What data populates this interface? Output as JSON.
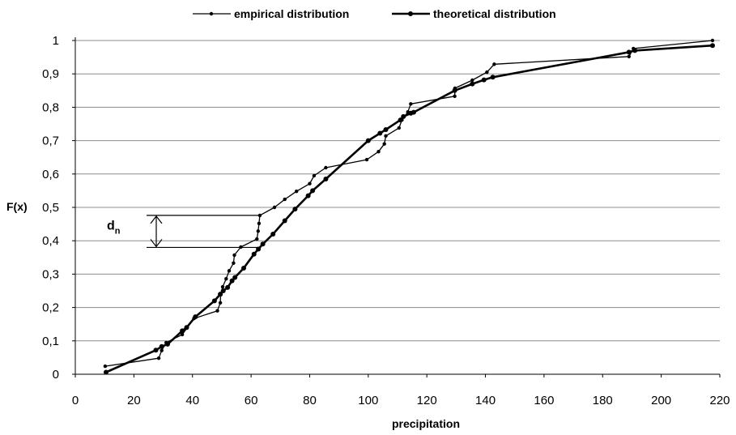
{
  "chart_data": {
    "type": "line",
    "xlabel": "precipitation",
    "ylabel": "F(x)",
    "xlim": [
      0,
      220
    ],
    "ylim": [
      0,
      1
    ],
    "x_ticks": [
      0,
      20,
      40,
      60,
      80,
      100,
      120,
      140,
      160,
      180,
      200,
      220
    ],
    "y_tick_values": [
      0,
      0.1,
      0.2,
      0.3,
      0.4,
      0.5,
      0.6,
      0.7,
      0.8,
      0.9,
      1
    ],
    "y_tick_labels": [
      "0",
      "0,1",
      "0,2",
      "0,3",
      "0,4",
      "0,5",
      "0,6",
      "0,7",
      "0,8",
      "0,9",
      "1"
    ],
    "grid": {
      "horizontal": true,
      "vertical": false
    },
    "legend_position": "top",
    "annotation": {
      "main": "d",
      "sub": "n",
      "x": 63,
      "y_low": 0.38,
      "y_high": 0.476
    },
    "series": [
      {
        "name": "empirical distribution",
        "style": "thin",
        "color": "#000000",
        "points": [
          [
            10.2,
            0.024
          ],
          [
            28.5,
            0.048
          ],
          [
            29.5,
            0.071
          ],
          [
            31.0,
            0.095
          ],
          [
            36.5,
            0.119
          ],
          [
            40.5,
            0.167
          ],
          [
            48.5,
            0.19
          ],
          [
            49.5,
            0.214
          ],
          [
            49.6,
            0.238
          ],
          [
            50.3,
            0.262
          ],
          [
            51.5,
            0.286
          ],
          [
            52.5,
            0.31
          ],
          [
            54.0,
            0.333
          ],
          [
            54.3,
            0.357
          ],
          [
            56.5,
            0.381
          ],
          [
            62.0,
            0.405
          ],
          [
            62.4,
            0.429
          ],
          [
            62.7,
            0.452
          ],
          [
            63.0,
            0.476
          ],
          [
            68.0,
            0.5
          ],
          [
            71.5,
            0.524
          ],
          [
            75.5,
            0.548
          ],
          [
            80.0,
            0.571
          ],
          [
            81.5,
            0.595
          ],
          [
            85.5,
            0.619
          ],
          [
            99.5,
            0.643
          ],
          [
            103.5,
            0.667
          ],
          [
            105.5,
            0.69
          ],
          [
            106.0,
            0.714
          ],
          [
            110.5,
            0.738
          ],
          [
            111.5,
            0.762
          ],
          [
            113.5,
            0.786
          ],
          [
            114.5,
            0.81
          ],
          [
            129.5,
            0.833
          ],
          [
            129.6,
            0.857
          ],
          [
            135.5,
            0.881
          ],
          [
            140.5,
            0.905
          ],
          [
            143.0,
            0.929
          ],
          [
            189.0,
            0.952
          ],
          [
            190.5,
            0.976
          ],
          [
            217.5,
            1.0
          ]
        ]
      },
      {
        "name": "theoretical distribution",
        "style": "thick",
        "color": "#000000",
        "points": [
          [
            10.5,
            0.006
          ],
          [
            27.5,
            0.072
          ],
          [
            29.5,
            0.083
          ],
          [
            31.5,
            0.09
          ],
          [
            36.5,
            0.13
          ],
          [
            38.0,
            0.14
          ],
          [
            41.0,
            0.172
          ],
          [
            47.5,
            0.22
          ],
          [
            49.5,
            0.24
          ],
          [
            50.5,
            0.25
          ],
          [
            52.0,
            0.26
          ],
          [
            53.5,
            0.28
          ],
          [
            54.5,
            0.29
          ],
          [
            57.5,
            0.318
          ],
          [
            61.0,
            0.36
          ],
          [
            62.5,
            0.375
          ],
          [
            64.0,
            0.39
          ],
          [
            67.5,
            0.42
          ],
          [
            71.5,
            0.46
          ],
          [
            75.0,
            0.495
          ],
          [
            79.5,
            0.535
          ],
          [
            81.0,
            0.55
          ],
          [
            85.5,
            0.585
          ],
          [
            100.0,
            0.7
          ],
          [
            104.0,
            0.722
          ],
          [
            106.0,
            0.733
          ],
          [
            111.0,
            0.762
          ],
          [
            112.0,
            0.772
          ],
          [
            114.5,
            0.782
          ],
          [
            115.5,
            0.785
          ],
          [
            129.5,
            0.85
          ],
          [
            135.5,
            0.87
          ],
          [
            139.5,
            0.882
          ],
          [
            142.5,
            0.89
          ],
          [
            189.0,
            0.965
          ],
          [
            191.0,
            0.97
          ],
          [
            217.5,
            0.985
          ]
        ]
      }
    ]
  }
}
